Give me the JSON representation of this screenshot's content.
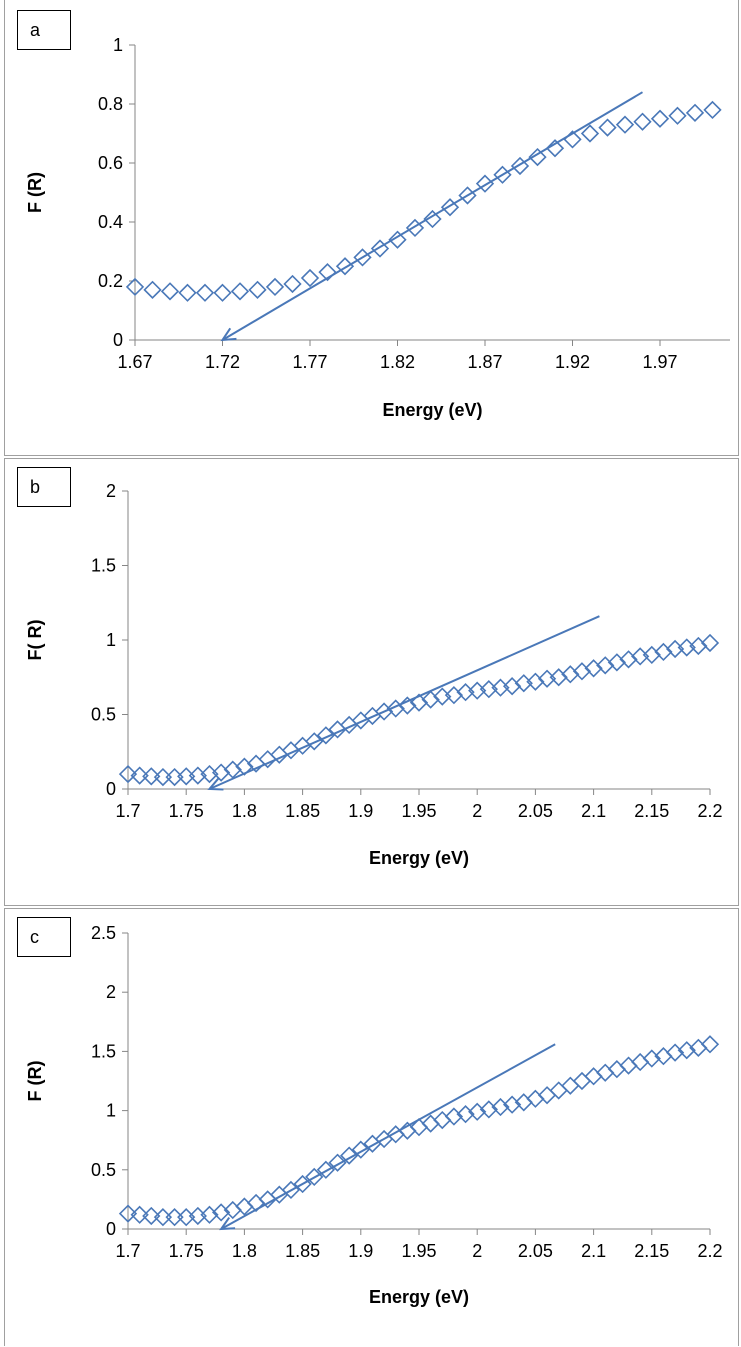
{
  "chart_data": [
    {
      "type": "scatter",
      "panel_label": "a",
      "xlabel": "Energy (eV)",
      "ylabel": "F (R)",
      "xlim": [
        1.67,
        2.01
      ],
      "ylim": [
        0,
        1
      ],
      "xticks": [
        "1.67",
        "1.72",
        "1.77",
        "1.82",
        "1.87",
        "1.92",
        "1.97"
      ],
      "yticks": [
        "0",
        "0.2",
        "0.4",
        "0.6",
        "0.8",
        "1"
      ],
      "marker": "diamond-open",
      "color": "#4a78b8",
      "points": {
        "x": [
          1.67,
          1.68,
          1.69,
          1.7,
          1.71,
          1.72,
          1.73,
          1.74,
          1.75,
          1.76,
          1.77,
          1.78,
          1.79,
          1.8,
          1.81,
          1.82,
          1.83,
          1.84,
          1.85,
          1.86,
          1.87,
          1.88,
          1.89,
          1.9,
          1.91,
          1.92,
          1.93,
          1.94,
          1.95,
          1.96,
          1.97,
          1.98,
          1.99,
          2.0
        ],
        "y": [
          0.18,
          0.17,
          0.165,
          0.16,
          0.16,
          0.16,
          0.165,
          0.17,
          0.18,
          0.19,
          0.21,
          0.23,
          0.25,
          0.28,
          0.31,
          0.34,
          0.38,
          0.41,
          0.45,
          0.49,
          0.53,
          0.56,
          0.59,
          0.62,
          0.65,
          0.68,
          0.7,
          0.72,
          0.73,
          0.74,
          0.75,
          0.76,
          0.77,
          0.78
        ]
      },
      "fit_line": {
        "x": [
          1.72,
          1.96
        ],
        "y": [
          0.0,
          0.84
        ]
      }
    },
    {
      "type": "scatter",
      "panel_label": "b",
      "xlabel": "Energy (eV)",
      "ylabel": "F( R)",
      "xlim": [
        1.7,
        2.2
      ],
      "ylim": [
        0,
        2
      ],
      "xticks": [
        "1.7",
        "1.75",
        "1.8",
        "1.85",
        "1.9",
        "1.95",
        "2",
        "2.05",
        "2.1",
        "2.15",
        "2.2"
      ],
      "yticks": [
        "0",
        "0.5",
        "1",
        "1.5",
        "2"
      ],
      "marker": "diamond-open",
      "color": "#4a78b8",
      "points": {
        "x": [
          1.7,
          1.71,
          1.72,
          1.73,
          1.74,
          1.75,
          1.76,
          1.77,
          1.78,
          1.79,
          1.8,
          1.81,
          1.82,
          1.83,
          1.84,
          1.85,
          1.86,
          1.87,
          1.88,
          1.89,
          1.9,
          1.91,
          1.92,
          1.93,
          1.94,
          1.95,
          1.96,
          1.97,
          1.98,
          1.99,
          2.0,
          2.01,
          2.02,
          2.03,
          2.04,
          2.05,
          2.06,
          2.07,
          2.08,
          2.09,
          2.1,
          2.11,
          2.12,
          2.13,
          2.14,
          2.15,
          2.16,
          2.17,
          2.18,
          2.19,
          2.2
        ],
        "y": [
          0.1,
          0.09,
          0.085,
          0.08,
          0.08,
          0.085,
          0.09,
          0.1,
          0.11,
          0.13,
          0.15,
          0.17,
          0.2,
          0.23,
          0.26,
          0.29,
          0.32,
          0.36,
          0.4,
          0.43,
          0.46,
          0.49,
          0.52,
          0.54,
          0.56,
          0.58,
          0.6,
          0.62,
          0.63,
          0.65,
          0.66,
          0.67,
          0.68,
          0.69,
          0.71,
          0.72,
          0.74,
          0.75,
          0.77,
          0.79,
          0.81,
          0.83,
          0.85,
          0.87,
          0.89,
          0.9,
          0.92,
          0.94,
          0.95,
          0.96,
          0.98
        ]
      },
      "fit_line": {
        "x": [
          1.77,
          2.105
        ],
        "y": [
          0.0,
          1.16
        ]
      }
    },
    {
      "type": "scatter",
      "panel_label": "c",
      "xlabel": "Energy (eV)",
      "ylabel": "F (R)",
      "xlim": [
        1.7,
        2.2
      ],
      "ylim": [
        0,
        2.5
      ],
      "xticks": [
        "1.7",
        "1.75",
        "1.8",
        "1.85",
        "1.9",
        "1.95",
        "2",
        "2.05",
        "2.1",
        "2.15",
        "2.2"
      ],
      "yticks": [
        "0",
        "0.5",
        "1",
        "1.5",
        "2",
        "2.5"
      ],
      "marker": "diamond-open",
      "color": "#4a78b8",
      "points": {
        "x": [
          1.7,
          1.71,
          1.72,
          1.73,
          1.74,
          1.75,
          1.76,
          1.77,
          1.78,
          1.79,
          1.8,
          1.81,
          1.82,
          1.83,
          1.84,
          1.85,
          1.86,
          1.87,
          1.88,
          1.89,
          1.9,
          1.91,
          1.92,
          1.93,
          1.94,
          1.95,
          1.96,
          1.97,
          1.98,
          1.99,
          2.0,
          2.01,
          2.02,
          2.03,
          2.04,
          2.05,
          2.06,
          2.07,
          2.08,
          2.09,
          2.1,
          2.11,
          2.12,
          2.13,
          2.14,
          2.15,
          2.16,
          2.17,
          2.18,
          2.19,
          2.2
        ],
        "y": [
          0.13,
          0.12,
          0.11,
          0.1,
          0.1,
          0.1,
          0.11,
          0.12,
          0.14,
          0.16,
          0.19,
          0.22,
          0.25,
          0.29,
          0.33,
          0.38,
          0.44,
          0.5,
          0.56,
          0.62,
          0.67,
          0.72,
          0.76,
          0.8,
          0.83,
          0.86,
          0.89,
          0.92,
          0.95,
          0.97,
          0.99,
          1.01,
          1.03,
          1.05,
          1.07,
          1.1,
          1.13,
          1.17,
          1.21,
          1.25,
          1.29,
          1.32,
          1.35,
          1.38,
          1.41,
          1.44,
          1.46,
          1.49,
          1.51,
          1.53,
          1.56
        ]
      },
      "fit_line": {
        "x": [
          1.78,
          2.067
        ],
        "y": [
          0.0,
          1.56
        ]
      }
    }
  ]
}
